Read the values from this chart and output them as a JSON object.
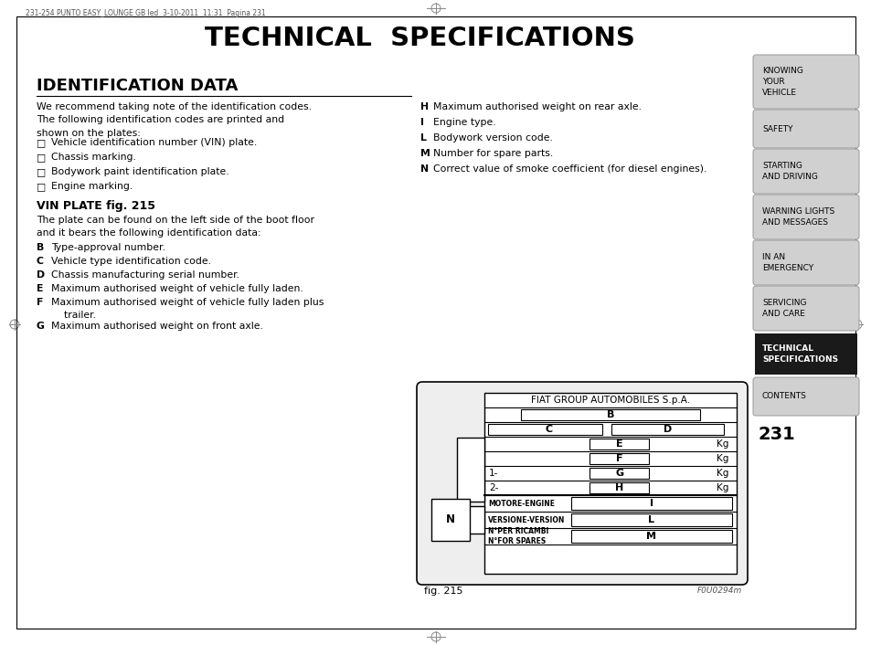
{
  "title": "TECHNICAL  SPECIFICATIONS",
  "bg_color": "#ffffff",
  "header_text": "231-254 PUNTO EASY_LOUNGE GB led  3-10-2011  11:31  Pagina 231",
  "section_title": "IDENTIFICATION DATA",
  "sidebar_items": [
    {
      "text": "KNOWING\nYOUR\nVEHICLE",
      "active": false
    },
    {
      "text": "SAFETY",
      "active": false
    },
    {
      "text": "STARTING\nAND DRIVING",
      "active": false
    },
    {
      "text": "WARNING LIGHTS\nAND MESSAGES",
      "active": false
    },
    {
      "text": "IN AN\nEMERGENCY",
      "active": false
    },
    {
      "text": "SERVICING\nAND CARE",
      "active": false
    },
    {
      "text": "TECHNICAL\nSPECIFICATIONS",
      "active": true
    },
    {
      "text": "CONTENTS",
      "active": false
    }
  ],
  "page_number": "231",
  "sidebar_bg_inactive": "#d0d0d0",
  "sidebar_bg_active": "#1a1a1a",
  "sidebar_text_inactive": "#000000",
  "sidebar_text_active": "#ffffff",
  "vin_plate_label": "fig. 215",
  "vin_plate_code": "F0U0294m"
}
